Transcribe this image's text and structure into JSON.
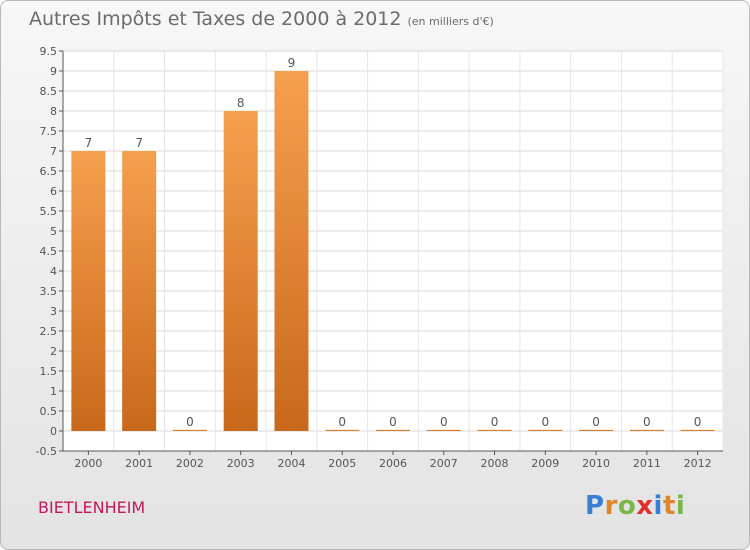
{
  "title": "Autres Impôts et Taxes de 2000 à 2012",
  "title_unit": "(en milliers d'€)",
  "commune": "BIETLENHEIM",
  "logo": {
    "letters": [
      "P",
      "r",
      "o",
      "x",
      "i",
      "t",
      "i"
    ],
    "colors": [
      "#3a7fd5",
      "#e0862a",
      "#7ab648",
      "#e0312f",
      "#3a7fd5",
      "#e0862a",
      "#7ab648"
    ]
  },
  "chart_data": {
    "type": "bar",
    "categories": [
      "2000",
      "2001",
      "2002",
      "2003",
      "2004",
      "2005",
      "2006",
      "2007",
      "2008",
      "2009",
      "2010",
      "2011",
      "2012"
    ],
    "values": [
      7,
      7,
      0,
      8,
      9,
      0,
      0,
      0,
      0,
      0,
      0,
      0,
      0
    ],
    "value_labels": [
      "7",
      "7",
      "0",
      "8",
      "9",
      "0",
      "0",
      "0",
      "0",
      "0",
      "0",
      "0",
      "0"
    ],
    "yticks": [
      "-0.5",
      "0",
      "0.5",
      "1",
      "1.5",
      "2",
      "2.5",
      "3",
      "3.5",
      "4",
      "4.5",
      "5",
      "5.5",
      "6",
      "6.5",
      "7",
      "7.5",
      "8",
      "8.5",
      "9",
      "9.5"
    ],
    "ylim": [
      -0.5,
      9.5
    ],
    "grid": true,
    "bar_color": "#f5a04e",
    "bar_color_dark": "#c8681a"
  }
}
